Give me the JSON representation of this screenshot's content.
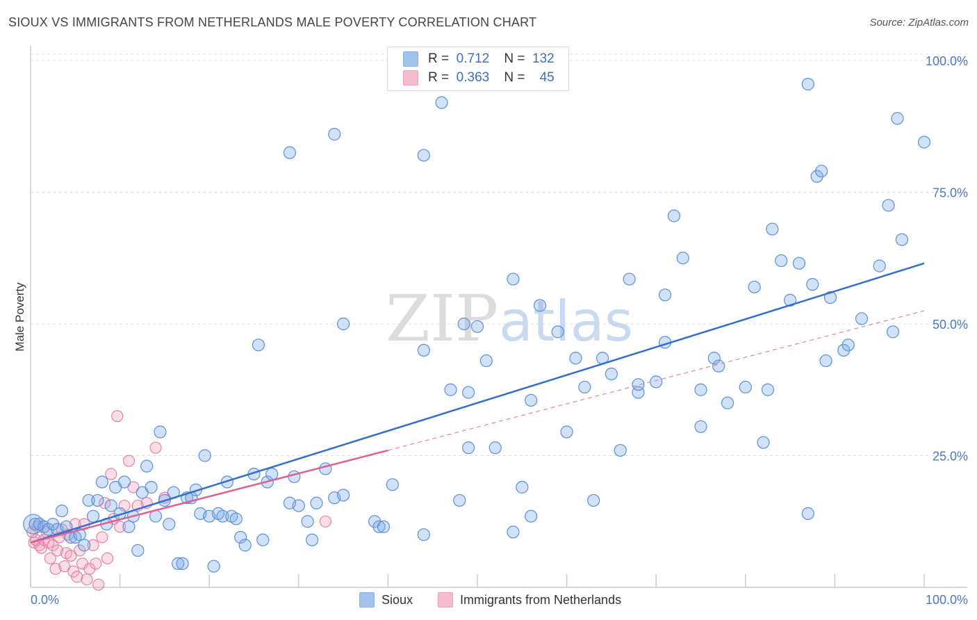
{
  "title": "SIOUX VS IMMIGRANTS FROM NETHERLANDS MALE POVERTY CORRELATION CHART",
  "source": "Source: ZipAtlas.com",
  "watermark": {
    "zip": "ZIP",
    "atlas": "atlas"
  },
  "legend": {
    "r_label": "R =",
    "n_label": "N =",
    "rows": [
      {
        "name": "Sioux",
        "r": "0.712",
        "n": "132",
        "color": "#7aaae8"
      },
      {
        "name": "Immigrants from Netherlands",
        "r": "0.363",
        "n": "45",
        "color": "#f2a0bb"
      }
    ]
  },
  "chart_data": {
    "type": "scatter",
    "title": "SIOUX VS IMMIGRANTS FROM NETHERLANDS MALE POVERTY CORRELATION CHART",
    "xlabel": "",
    "ylabel": "Male Poverty",
    "xlim": [
      0,
      100
    ],
    "ylim": [
      0,
      100
    ],
    "x_tick_labels": [
      "0.0%",
      "100.0%"
    ],
    "y_ticks": [
      25,
      50,
      75,
      100
    ],
    "y_tick_labels": [
      "25.0%",
      "50.0%",
      "75.0%",
      "100.0%"
    ],
    "grid": true,
    "series": [
      {
        "name": "Sioux",
        "color": "#7aaae8",
        "edge": "#5b8fd8",
        "trend": {
          "x0": 0,
          "y0": 8.5,
          "x1": 100,
          "y1": 61.5,
          "color": "#2f6fd0",
          "style": "solid"
        },
        "points": [
          [
            0.5,
            12
          ],
          [
            1,
            12
          ],
          [
            1.5,
            11.5
          ],
          [
            2,
            11
          ],
          [
            2.5,
            12
          ],
          [
            3,
            11
          ],
          [
            3.5,
            14.5
          ],
          [
            4,
            11.5
          ],
          [
            4.5,
            9.5
          ],
          [
            5,
            9.5
          ],
          [
            5.5,
            10
          ],
          [
            6,
            8
          ],
          [
            6.5,
            16.5
          ],
          [
            7,
            13.5
          ],
          [
            7.5,
            16.5
          ],
          [
            8,
            20
          ],
          [
            8.5,
            12
          ],
          [
            9,
            15.5
          ],
          [
            9.5,
            19
          ],
          [
            10,
            14
          ],
          [
            10.5,
            20
          ],
          [
            11,
            11.5
          ],
          [
            11.5,
            13.5
          ],
          [
            12,
            7
          ],
          [
            12.5,
            18
          ],
          [
            13,
            23
          ],
          [
            13.5,
            19
          ],
          [
            14,
            13.5
          ],
          [
            14.5,
            29.5
          ],
          [
            15,
            16.5
          ],
          [
            15.5,
            12
          ],
          [
            16,
            18
          ],
          [
            16.5,
            4.5
          ],
          [
            17,
            4.5
          ],
          [
            17.5,
            17
          ],
          [
            18,
            17
          ],
          [
            18.5,
            18.5
          ],
          [
            19,
            14
          ],
          [
            19.5,
            25
          ],
          [
            20,
            13.5
          ],
          [
            20.5,
            4
          ],
          [
            21,
            14
          ],
          [
            21.5,
            13.5
          ],
          [
            22,
            20
          ],
          [
            22.5,
            13.5
          ],
          [
            23,
            13
          ],
          [
            23.5,
            9.5
          ],
          [
            24,
            8
          ],
          [
            25,
            21.5
          ],
          [
            25.5,
            46
          ],
          [
            26,
            9
          ],
          [
            26.5,
            20
          ],
          [
            27,
            21.5
          ],
          [
            29,
            82.5
          ],
          [
            29,
            16
          ],
          [
            29.5,
            21
          ],
          [
            30,
            15.5
          ],
          [
            31,
            12.5
          ],
          [
            31.5,
            9
          ],
          [
            32,
            16
          ],
          [
            33,
            22.5
          ],
          [
            34,
            86
          ],
          [
            34,
            17
          ],
          [
            35,
            17.5
          ],
          [
            35,
            50
          ],
          [
            38.5,
            12.5
          ],
          [
            39,
            11.5
          ],
          [
            39.5,
            11.5
          ],
          [
            40.5,
            19.5
          ],
          [
            44,
            82
          ],
          [
            44,
            45
          ],
          [
            44,
            10
          ],
          [
            46,
            92
          ],
          [
            47,
            37.5
          ],
          [
            48,
            16.5
          ],
          [
            48.5,
            50
          ],
          [
            49,
            37
          ],
          [
            49,
            26.5
          ],
          [
            50,
            49.5
          ],
          [
            51,
            43
          ],
          [
            52,
            26.5
          ],
          [
            54,
            58.5
          ],
          [
            54,
            10.5
          ],
          [
            55,
            19
          ],
          [
            56,
            13.5
          ],
          [
            56,
            35.5
          ],
          [
            57,
            53.5
          ],
          [
            59,
            48.5
          ],
          [
            60,
            29.5
          ],
          [
            61,
            43.5
          ],
          [
            62,
            38
          ],
          [
            63,
            16.5
          ],
          [
            64,
            43.5
          ],
          [
            65,
            40.5
          ],
          [
            66,
            26
          ],
          [
            67,
            58.5
          ],
          [
            68,
            37
          ],
          [
            68,
            38.5
          ],
          [
            70,
            39
          ],
          [
            71,
            55.5
          ],
          [
            71,
            46.5
          ],
          [
            72,
            70.5
          ],
          [
            73,
            62.5
          ],
          [
            75,
            30.5
          ],
          [
            75,
            37.5
          ],
          [
            76.5,
            43.5
          ],
          [
            77,
            42
          ],
          [
            78,
            35
          ],
          [
            80,
            38
          ],
          [
            81,
            57
          ],
          [
            82,
            27.5
          ],
          [
            82.5,
            37.5
          ],
          [
            83,
            68
          ],
          [
            84,
            62
          ],
          [
            85,
            54.5
          ],
          [
            86,
            61.5
          ],
          [
            87,
            14
          ],
          [
            87,
            95.5
          ],
          [
            87.5,
            57.5
          ],
          [
            88,
            78
          ],
          [
            88.5,
            79
          ],
          [
            89,
            43
          ],
          [
            89.5,
            55
          ],
          [
            91,
            45
          ],
          [
            91.5,
            46
          ],
          [
            93,
            51
          ],
          [
            95,
            61
          ],
          [
            96,
            72.5
          ],
          [
            96.5,
            48.5
          ],
          [
            97,
            89
          ],
          [
            97.5,
            66
          ],
          [
            100,
            84.5
          ]
        ]
      },
      {
        "name": "Immigrants from Netherlands",
        "color": "#f2a0bb",
        "edge": "#e57a9c",
        "trend": {
          "x0": 0,
          "y0": 8.5,
          "x1": 40,
          "y1": 26,
          "color": "#e0608e",
          "style": "solid"
        },
        "trend_extended": {
          "x0": 40,
          "y0": 26,
          "x1": 100,
          "y1": 52.5,
          "color": "#e8809f",
          "style": "dashed"
        },
        "points": [
          [
            0.2,
            10.5
          ],
          [
            0.4,
            8.5
          ],
          [
            0.6,
            9
          ],
          [
            0.8,
            11.5
          ],
          [
            1,
            8
          ],
          [
            1.2,
            7.5
          ],
          [
            1.5,
            9
          ],
          [
            1.8,
            10.5
          ],
          [
            2,
            8.5
          ],
          [
            2.2,
            5.5
          ],
          [
            2.5,
            8
          ],
          [
            2.8,
            3.5
          ],
          [
            3,
            7
          ],
          [
            3.2,
            9.5
          ],
          [
            3.5,
            11
          ],
          [
            3.8,
            4
          ],
          [
            4,
            6.5
          ],
          [
            4.2,
            10
          ],
          [
            4.5,
            6
          ],
          [
            4.8,
            3
          ],
          [
            5,
            12
          ],
          [
            5.2,
            2
          ],
          [
            5.5,
            7
          ],
          [
            5.8,
            4.5
          ],
          [
            6,
            12
          ],
          [
            6.3,
            1.5
          ],
          [
            6.6,
            3.5
          ],
          [
            7,
            8
          ],
          [
            7.3,
            4.5
          ],
          [
            7.6,
            0.5
          ],
          [
            8,
            9.5
          ],
          [
            8.3,
            16
          ],
          [
            8.6,
            5.5
          ],
          [
            9,
            21.5
          ],
          [
            9.3,
            13
          ],
          [
            9.7,
            32.5
          ],
          [
            10,
            11.5
          ],
          [
            10.5,
            15.5
          ],
          [
            11,
            24
          ],
          [
            11.5,
            19
          ],
          [
            12,
            15.5
          ],
          [
            13,
            16
          ],
          [
            14,
            26.5
          ],
          [
            15,
            17
          ],
          [
            33,
            12.5
          ]
        ]
      }
    ]
  }
}
